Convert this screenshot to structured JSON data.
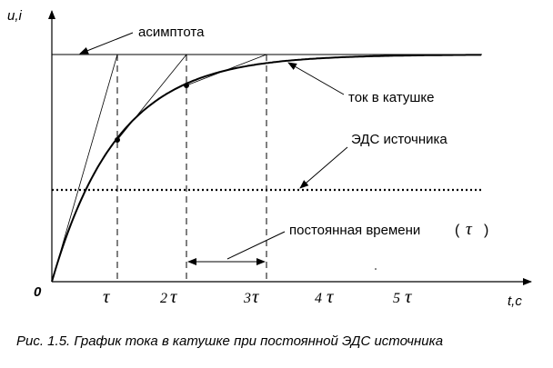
{
  "axes": {
    "y_label": "u,i",
    "x_label": "t,c",
    "origin_label": "0"
  },
  "ticks": [
    {
      "coef": "",
      "tau": "τ"
    },
    {
      "coef": "2",
      "tau": "τ"
    },
    {
      "coef": "3",
      "tau": "τ"
    },
    {
      "coef": "4",
      "tau": "τ"
    },
    {
      "coef": "5",
      "tau": "τ"
    }
  ],
  "labels": {
    "asymptote": "асимптота",
    "current": "ток в катушке",
    "emf": "ЭДС источника",
    "time_constant": "постоянная времени",
    "time_constant_symbol": "τ",
    "open_paren": "(",
    "close_paren": ")"
  },
  "caption": "Рис. 1.5. График тока в катушке при постоянной ЭДС источника"
}
